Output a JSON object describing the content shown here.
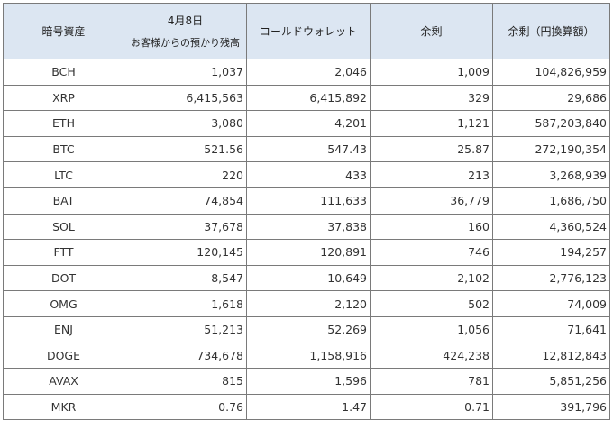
{
  "table": {
    "headers": {
      "symbol": "暗号資産",
      "deposit_date": "4月8日",
      "deposit_label": "お客様からの預かり残高",
      "cold_wallet": "コールドウォレット",
      "surplus": "余剰",
      "surplus_yen": "余剰（円換算額）"
    },
    "rows": [
      {
        "symbol": "BCH",
        "deposit": "1,037",
        "cold": "2,046",
        "surplus": "1,009",
        "surplus_yen": "104,826,959"
      },
      {
        "symbol": "XRP",
        "deposit": "6,415,563",
        "cold": "6,415,892",
        "surplus": "329",
        "surplus_yen": "29,686"
      },
      {
        "symbol": "ETH",
        "deposit": "3,080",
        "cold": "4,201",
        "surplus": "1,121",
        "surplus_yen": "587,203,840"
      },
      {
        "symbol": "BTC",
        "deposit": "521.56",
        "cold": "547.43",
        "surplus": "25.87",
        "surplus_yen": "272,190,354"
      },
      {
        "symbol": "LTC",
        "deposit": "220",
        "cold": "433",
        "surplus": "213",
        "surplus_yen": "3,268,939"
      },
      {
        "symbol": "BAT",
        "deposit": "74,854",
        "cold": "111,633",
        "surplus": "36,779",
        "surplus_yen": "1,686,750"
      },
      {
        "symbol": "SOL",
        "deposit": "37,678",
        "cold": "37,838",
        "surplus": "160",
        "surplus_yen": "4,360,524"
      },
      {
        "symbol": "FTT",
        "deposit": "120,145",
        "cold": "120,891",
        "surplus": "746",
        "surplus_yen": "194,257"
      },
      {
        "symbol": "DOT",
        "deposit": "8,547",
        "cold": "10,649",
        "surplus": "2,102",
        "surplus_yen": "2,776,123"
      },
      {
        "symbol": "OMG",
        "deposit": "1,618",
        "cold": "2,120",
        "surplus": "502",
        "surplus_yen": "74,009"
      },
      {
        "symbol": "ENJ",
        "deposit": "51,213",
        "cold": "52,269",
        "surplus": "1,056",
        "surplus_yen": "71,641"
      },
      {
        "symbol": "DOGE",
        "deposit": "734,678",
        "cold": "1,158,916",
        "surplus": "424,238",
        "surplus_yen": "12,812,843"
      },
      {
        "symbol": "AVAX",
        "deposit": "815",
        "cold": "1,596",
        "surplus": "781",
        "surplus_yen": "5,851,256"
      },
      {
        "symbol": "MKR",
        "deposit": "0.76",
        "cold": "1.47",
        "surplus": "0.71",
        "surplus_yen": "391,796"
      }
    ]
  }
}
